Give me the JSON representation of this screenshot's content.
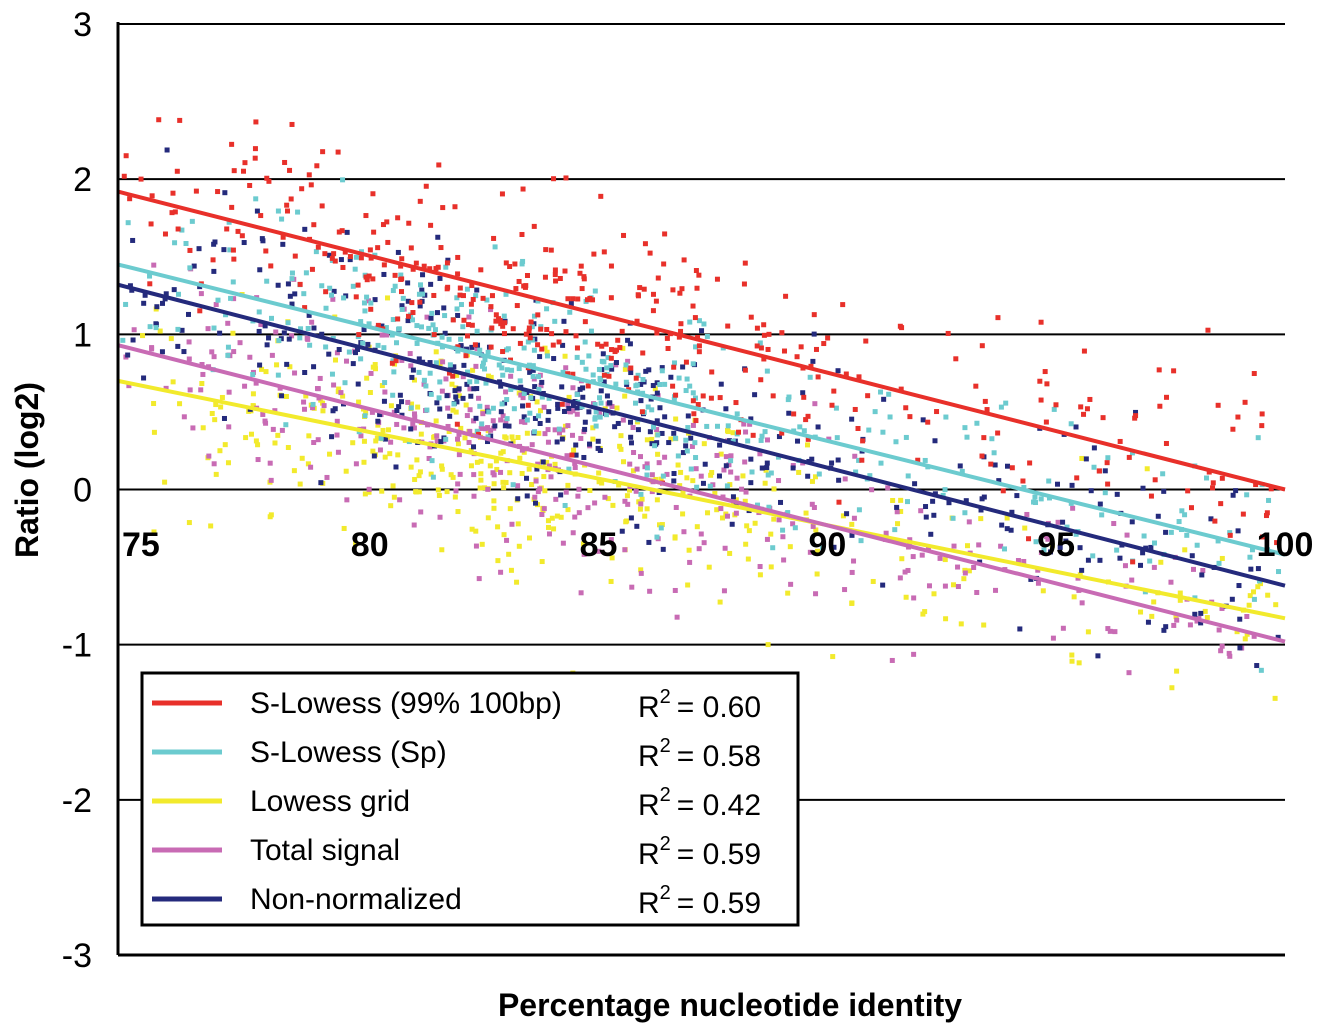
{
  "chart_data": {
    "type": "scatter",
    "xlabel": "Percentage nucleotide identity",
    "ylabel": "Ratio (log2)",
    "xlim": [
      74.5,
      100
    ],
    "ylim": [
      -3,
      3
    ],
    "x_ticks": [
      "75",
      "80",
      "85",
      "90",
      "95",
      "100"
    ],
    "y_ticks": [
      "3",
      "2",
      "1",
      "0",
      "-1",
      "-2",
      "-3"
    ],
    "grid": "horizontal",
    "legend_position": "bottom-left",
    "r2_label": "R",
    "r2_exp": "2",
    "series": [
      {
        "name": "S-Lowess (99% 100bp)",
        "color": "#e8302a",
        "r2": "= 0.60",
        "fit": {
          "x": [
            74.5,
            100
          ],
          "y": [
            1.92,
            0.0
          ]
        }
      },
      {
        "name": "S-Lowess (Sp)",
        "color": "#6ccbcf",
        "r2": "= 0.58",
        "fit": {
          "x": [
            74.5,
            100
          ],
          "y": [
            1.45,
            -0.42
          ]
        }
      },
      {
        "name": "Lowess grid",
        "color": "#f2ea2c",
        "r2": "= 0.42",
        "fit": {
          "x": [
            74.5,
            100
          ],
          "y": [
            0.7,
            -0.83
          ]
        }
      },
      {
        "name": "Total signal",
        "color": "#c86bb4",
        "r2": "= 0.59",
        "fit": {
          "x": [
            74.5,
            100
          ],
          "y": [
            0.93,
            -0.98
          ]
        }
      },
      {
        "name": "Non-normalized",
        "color": "#242a7c",
        "r2": "= 0.59",
        "fit": {
          "x": [
            74.5,
            100
          ],
          "y": [
            1.32,
            -0.62
          ]
        }
      }
    ]
  }
}
